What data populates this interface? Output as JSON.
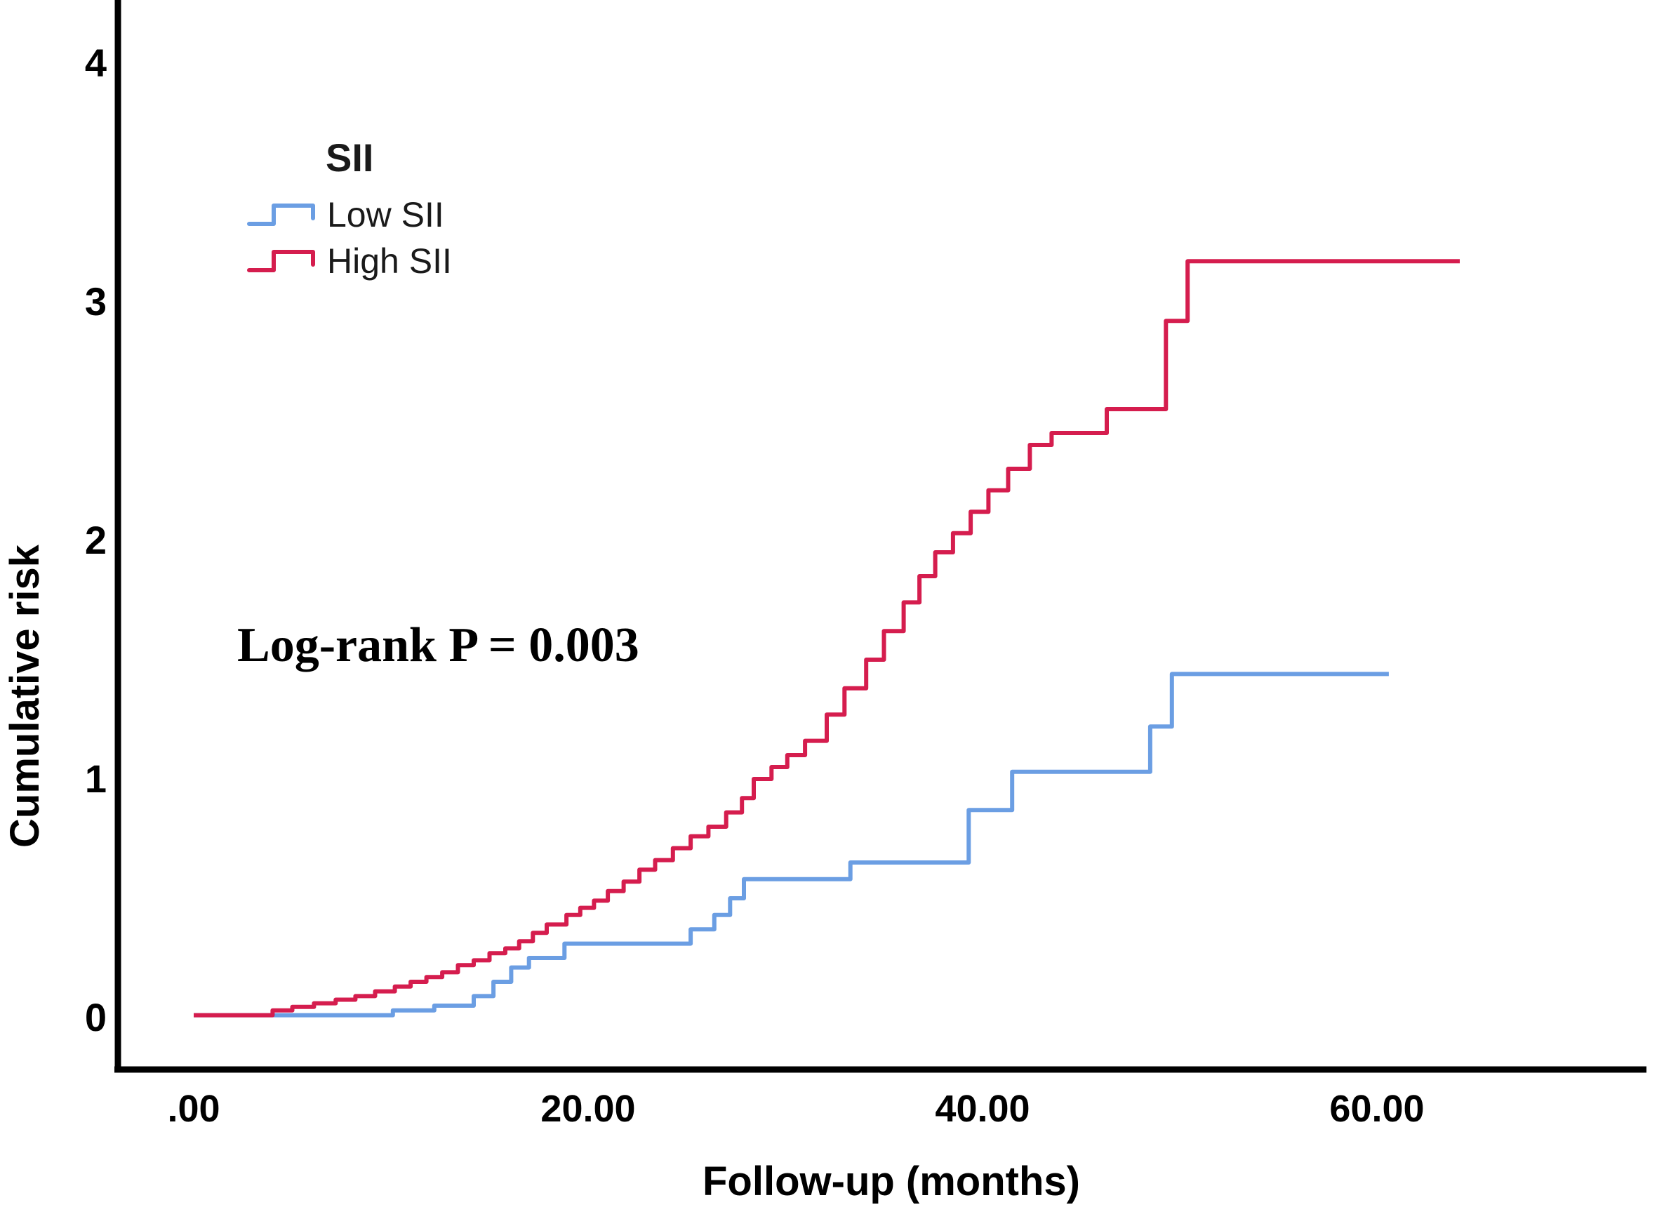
{
  "figure": {
    "background": "#ffffff",
    "axis_color": "#000000",
    "text_color": "#000000"
  },
  "chart_data": {
    "type": "line",
    "variant": "kaplan-meier-cumulative-hazard-step",
    "title": "",
    "xlabel": "Follow-up (months)",
    "ylabel": "Cumulative risk",
    "xlim": [
      -3.9,
      73.5
    ],
    "ylim": [
      -0.22,
      4.3
    ],
    "grid": false,
    "x_ticks": [
      {
        "value": 0,
        "label": ".00"
      },
      {
        "value": 20,
        "label": "20.00"
      },
      {
        "value": 40,
        "label": "40.00"
      },
      {
        "value": 60,
        "label": "60.00"
      }
    ],
    "y_ticks": [
      {
        "value": 0,
        "label": "0"
      },
      {
        "value": 1,
        "label": "1"
      },
      {
        "value": 2,
        "label": "2"
      },
      {
        "value": 3,
        "label": "3"
      },
      {
        "value": 4,
        "label": "4"
      }
    ],
    "legend": {
      "title": "SII",
      "position": "upper-left-inside"
    },
    "annotation": {
      "text": "Log-rank P = 0.003"
    },
    "series": [
      {
        "name": "Low SII",
        "color": "#6b9ee3",
        "points": [
          [
            0,
            0.01
          ],
          [
            10.1,
            0.03
          ],
          [
            12.2,
            0.05
          ],
          [
            14.2,
            0.09
          ],
          [
            15.2,
            0.15
          ],
          [
            16.1,
            0.21
          ],
          [
            17.0,
            0.25
          ],
          [
            18.8,
            0.31
          ],
          [
            25.2,
            0.37
          ],
          [
            26.4,
            0.43
          ],
          [
            27.2,
            0.5
          ],
          [
            27.9,
            0.58
          ],
          [
            33.3,
            0.65
          ],
          [
            39.3,
            0.87
          ],
          [
            41.5,
            1.03
          ],
          [
            48.5,
            1.22
          ],
          [
            49.6,
            1.44
          ]
        ],
        "end_time": 60.6
      },
      {
        "name": "High SII",
        "color": "#d51d4e",
        "points": [
          [
            0,
            0.01
          ],
          [
            4.0,
            0.03
          ],
          [
            5.0,
            0.045
          ],
          [
            6.1,
            0.06
          ],
          [
            7.2,
            0.075
          ],
          [
            8.2,
            0.09
          ],
          [
            9.2,
            0.11
          ],
          [
            10.2,
            0.13
          ],
          [
            11.0,
            0.15
          ],
          [
            11.8,
            0.17
          ],
          [
            12.6,
            0.19
          ],
          [
            13.4,
            0.22
          ],
          [
            14.2,
            0.24
          ],
          [
            15.0,
            0.27
          ],
          [
            15.8,
            0.29
          ],
          [
            16.5,
            0.32
          ],
          [
            17.2,
            0.355
          ],
          [
            17.9,
            0.39
          ],
          [
            18.9,
            0.43
          ],
          [
            19.6,
            0.46
          ],
          [
            20.3,
            0.49
          ],
          [
            21.0,
            0.53
          ],
          [
            21.8,
            0.57
          ],
          [
            22.6,
            0.62
          ],
          [
            23.4,
            0.66
          ],
          [
            24.3,
            0.71
          ],
          [
            25.2,
            0.76
          ],
          [
            26.1,
            0.8
          ],
          [
            27.0,
            0.86
          ],
          [
            27.8,
            0.92
          ],
          [
            28.4,
            1.0
          ],
          [
            29.3,
            1.05
          ],
          [
            30.1,
            1.1
          ],
          [
            31.0,
            1.16
          ],
          [
            32.1,
            1.27
          ],
          [
            33.0,
            1.38
          ],
          [
            34.1,
            1.5
          ],
          [
            35.0,
            1.62
          ],
          [
            36.0,
            1.74
          ],
          [
            36.8,
            1.85
          ],
          [
            37.6,
            1.95
          ],
          [
            38.5,
            2.03
          ],
          [
            39.4,
            2.12
          ],
          [
            40.3,
            2.21
          ],
          [
            41.3,
            2.3
          ],
          [
            42.4,
            2.4
          ],
          [
            43.5,
            2.45
          ],
          [
            46.3,
            2.55
          ],
          [
            49.3,
            2.92
          ],
          [
            50.4,
            3.17
          ]
        ],
        "end_time": 64.2
      }
    ]
  }
}
